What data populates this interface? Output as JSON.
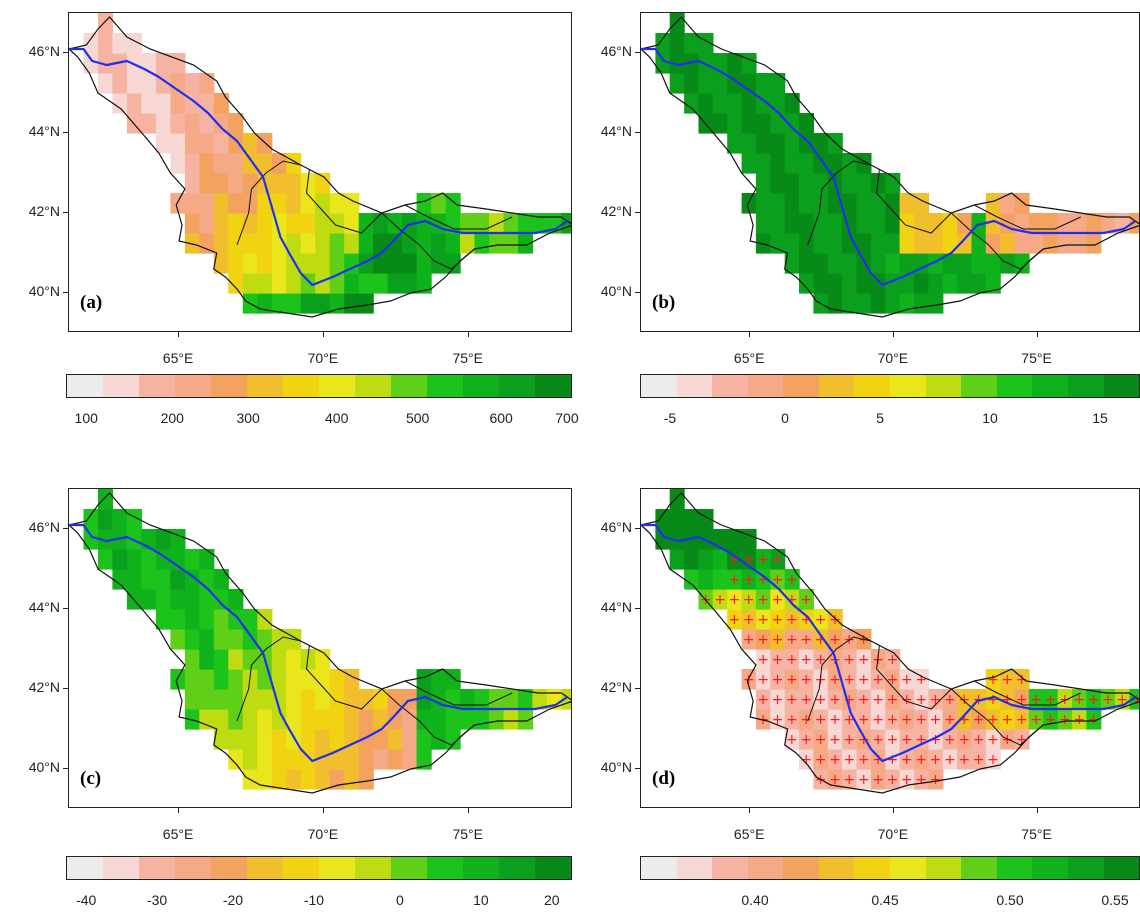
{
  "map_labels": {
    "lat_ticks": [
      "46°N",
      "44°N",
      "42°N",
      "40°N"
    ],
    "lon_ticks": [
      "65°E",
      "70°E",
      "75°E"
    ]
  },
  "colors": {
    "river": "#1f2ff0",
    "boundary": "#111111",
    "hatch": "#ff1a1a",
    "ramp": [
      "#ececec",
      "#f7d7d4",
      "#f6b3a2",
      "#f5a987",
      "#f3a35f",
      "#f1bf2e",
      "#f1d312",
      "#e9e61c",
      "#bfdc12",
      "#5fcf17",
      "#1cc31b",
      "#10b21c",
      "#0aa01d",
      "#088a18"
    ]
  },
  "panels": [
    {
      "label": "(a)",
      "colorbar": {
        "ticks": [
          "100",
          "200",
          "300",
          "400",
          "500",
          "600",
          "700"
        ]
      },
      "hatched": false
    },
    {
      "label": "(b)",
      "colorbar": {
        "ticks": [
          "-5",
          "0",
          "5",
          "10",
          "15"
        ]
      },
      "hatched": false
    },
    {
      "label": "(c)",
      "colorbar": {
        "ticks": [
          "-40",
          "-30",
          "-20",
          "-10",
          "0",
          "10",
          "20"
        ]
      },
      "hatched": false
    },
    {
      "label": "(d)",
      "colorbar": {
        "ticks": [
          "0.40",
          "0.45",
          "0.50",
          "0.55"
        ]
      },
      "hatched": true
    }
  ]
}
